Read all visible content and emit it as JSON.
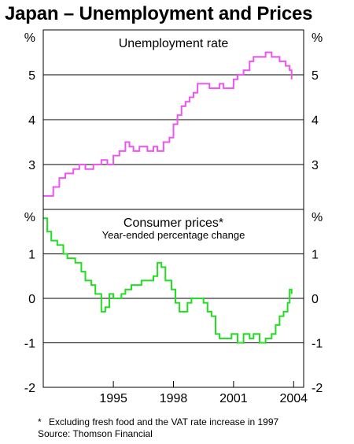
{
  "title": "Japan – Unemployment and Prices",
  "footnote": {
    "marker": "*",
    "text": "Excluding fresh food and the VAT rate increase in 1997",
    "source": "Source:  Thomson Financial"
  },
  "colors": {
    "unemployment": "#ee55ee",
    "prices": "#22dd22",
    "axis": "#000000",
    "grid": "#000000"
  },
  "chart_data": [
    {
      "type": "line",
      "title": "Unemployment rate",
      "unit": "%",
      "ylim": [
        2,
        6
      ],
      "yticks": [
        3,
        4,
        5
      ],
      "ytick_labels": [
        "3",
        "4",
        "5"
      ],
      "xlim": [
        1991.5,
        2004.5
      ],
      "grid": "horizontal",
      "series": [
        {
          "x": [
            1991.5,
            1991.8,
            1992.0,
            1992.3,
            1992.6,
            1993.0,
            1993.3,
            1993.6,
            1994.0,
            1994.4,
            1994.7,
            1995.0,
            1995.3,
            1995.6,
            1995.8,
            1996.0,
            1996.3,
            1996.7,
            1997.0,
            1997.2,
            1997.5,
            1997.8,
            1998.0,
            1998.2,
            1998.4,
            1998.6,
            1998.8,
            1999.0,
            1999.2,
            1999.5,
            1999.8,
            2000.0,
            2000.3,
            2000.5,
            2000.8,
            2001.0,
            2001.2,
            2001.5,
            2001.8,
            2002.0,
            2002.3,
            2002.6,
            2002.9,
            2003.1,
            2003.3,
            2003.6,
            2003.8,
            2003.9
          ],
          "values": [
            2.3,
            2.3,
            2.5,
            2.7,
            2.8,
            2.9,
            3.0,
            2.9,
            3.0,
            3.1,
            3.0,
            3.2,
            3.3,
            3.5,
            3.4,
            3.3,
            3.4,
            3.3,
            3.4,
            3.3,
            3.5,
            3.6,
            3.9,
            4.1,
            4.3,
            4.4,
            4.5,
            4.6,
            4.8,
            4.8,
            4.7,
            4.7,
            4.8,
            4.7,
            4.7,
            4.9,
            5.0,
            5.1,
            5.3,
            5.4,
            5.4,
            5.5,
            5.4,
            5.4,
            5.3,
            5.2,
            5.1,
            4.9
          ]
        }
      ]
    },
    {
      "type": "line",
      "title": "Consumer prices*",
      "subtitle": "Year-ended percentage change",
      "unit": "%",
      "ylim": [
        -2,
        2
      ],
      "yticks": [
        -2,
        -1,
        0,
        1
      ],
      "ytick_labels": [
        "-2",
        "-1",
        "0",
        "1"
      ],
      "xlim": [
        1991.5,
        2004.5
      ],
      "xticks": [
        1995,
        1998,
        2001,
        2004
      ],
      "xtick_labels": [
        "1995",
        "1998",
        "2001",
        "2004"
      ],
      "grid": "horizontal",
      "series": [
        {
          "x": [
            1991.5,
            1991.7,
            1991.9,
            1992.2,
            1992.5,
            1992.7,
            1992.9,
            1993.1,
            1993.4,
            1993.6,
            1993.9,
            1994.1,
            1994.4,
            1994.6,
            1994.8,
            1995.0,
            1995.2,
            1995.4,
            1995.6,
            1995.9,
            1996.1,
            1996.4,
            1996.7,
            1997.0,
            1997.2,
            1997.4,
            1997.6,
            1997.9,
            1998.1,
            1998.3,
            1998.5,
            1998.7,
            1998.9,
            1999.1,
            1999.3,
            1999.5,
            1999.7,
            1999.9,
            2000.1,
            2000.3,
            2000.6,
            2000.9,
            2001.2,
            2001.5,
            2001.8,
            2002.0,
            2002.3,
            2002.6,
            2002.9,
            2003.1,
            2003.3,
            2003.5,
            2003.7,
            2003.8,
            2003.9
          ],
          "values": [
            1.8,
            1.5,
            1.3,
            1.2,
            1.0,
            0.9,
            0.9,
            0.8,
            0.6,
            0.4,
            0.3,
            0.1,
            -0.3,
            -0.2,
            0.1,
            0.0,
            0.0,
            0.1,
            0.2,
            0.3,
            0.3,
            0.4,
            0.4,
            0.5,
            0.8,
            0.7,
            0.4,
            0.2,
            -0.1,
            -0.3,
            -0.3,
            -0.1,
            0.0,
            0.0,
            0.0,
            -0.1,
            -0.3,
            -0.4,
            -0.8,
            -0.9,
            -0.9,
            -0.8,
            -1.0,
            -0.8,
            -0.9,
            -0.8,
            -1.0,
            -0.9,
            -0.8,
            -0.6,
            -0.4,
            -0.3,
            -0.1,
            0.2,
            0.1
          ]
        }
      ]
    }
  ]
}
